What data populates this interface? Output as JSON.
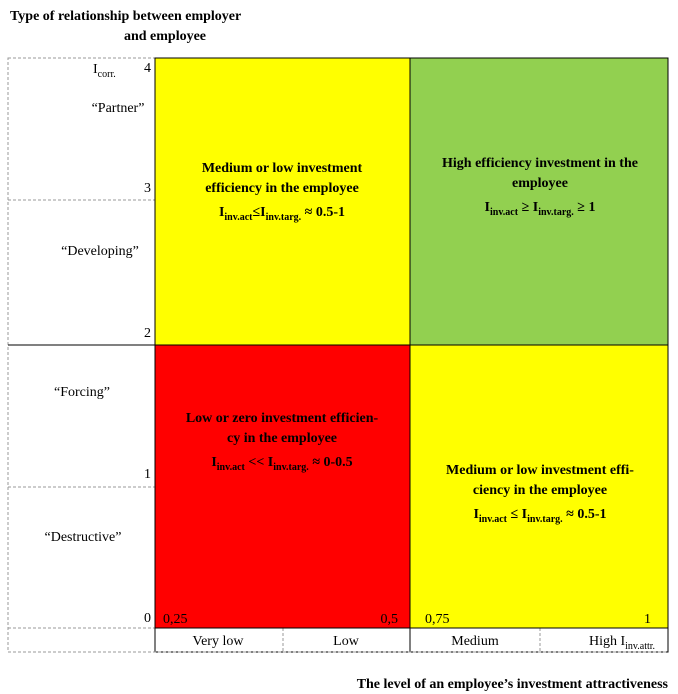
{
  "title": [
    "Type of relationship between employer",
    "and employee"
  ],
  "y_axis": {
    "label": [
      {
        "text": "I"
      },
      {
        "sub": "corr."
      }
    ],
    "scale": [
      "4",
      "3",
      "2",
      "1",
      "0"
    ],
    "levels": [
      "“Partner”",
      "“Developing”",
      "“Forcing”",
      "“Destructive”"
    ]
  },
  "quadrants": [
    {
      "color": "#ffff00",
      "lines": [
        "Medium or low investment",
        "efficiency in the employee"
      ],
      "formula": [
        {
          "text": "I"
        },
        {
          "sub": "inv.act"
        },
        {
          "text": "≤I"
        },
        {
          "sub": "inv.targ."
        },
        {
          "text": " ≈ 0.5-1"
        }
      ]
    },
    {
      "color": "#92d050",
      "lines": [
        "High efficiency investment in the",
        "employee"
      ],
      "formula": [
        {
          "text": "I"
        },
        {
          "sub": "inv.act"
        },
        {
          "text": " ≥ I"
        },
        {
          "sub": "inv.targ."
        },
        {
          "text": " ≥ 1"
        }
      ]
    },
    {
      "color": "#ff0000",
      "lines": [
        "Low or zero investment efficien-",
        "cy in the employee"
      ],
      "formula": [
        {
          "text": "I"
        },
        {
          "sub": "inv.act"
        },
        {
          "text": " << I"
        },
        {
          "sub": "inv.targ."
        },
        {
          "text": " ≈ 0-0.5"
        }
      ]
    },
    {
      "color": "#ffff00",
      "lines": [
        "Medium or low investment effi-",
        "ciency in the employee"
      ],
      "formula": [
        {
          "text": "I"
        },
        {
          "sub": "inv.act"
        },
        {
          "text": " ≤ I"
        },
        {
          "sub": "inv.targ."
        },
        {
          "text": " ≈ 0.5-1"
        }
      ]
    }
  ],
  "x_axis": {
    "scale": [
      "0,25",
      "0,5",
      "0,75",
      "1"
    ],
    "categories": [
      [
        {
          "text": "Very low"
        }
      ],
      [
        {
          "text": "Low"
        }
      ],
      [
        {
          "text": "Medium"
        }
      ],
      [
        {
          "text": "High I"
        },
        {
          "sub": "inv.attr."
        }
      ]
    ],
    "title": "The level of an employee’s investment attractiveness"
  }
}
